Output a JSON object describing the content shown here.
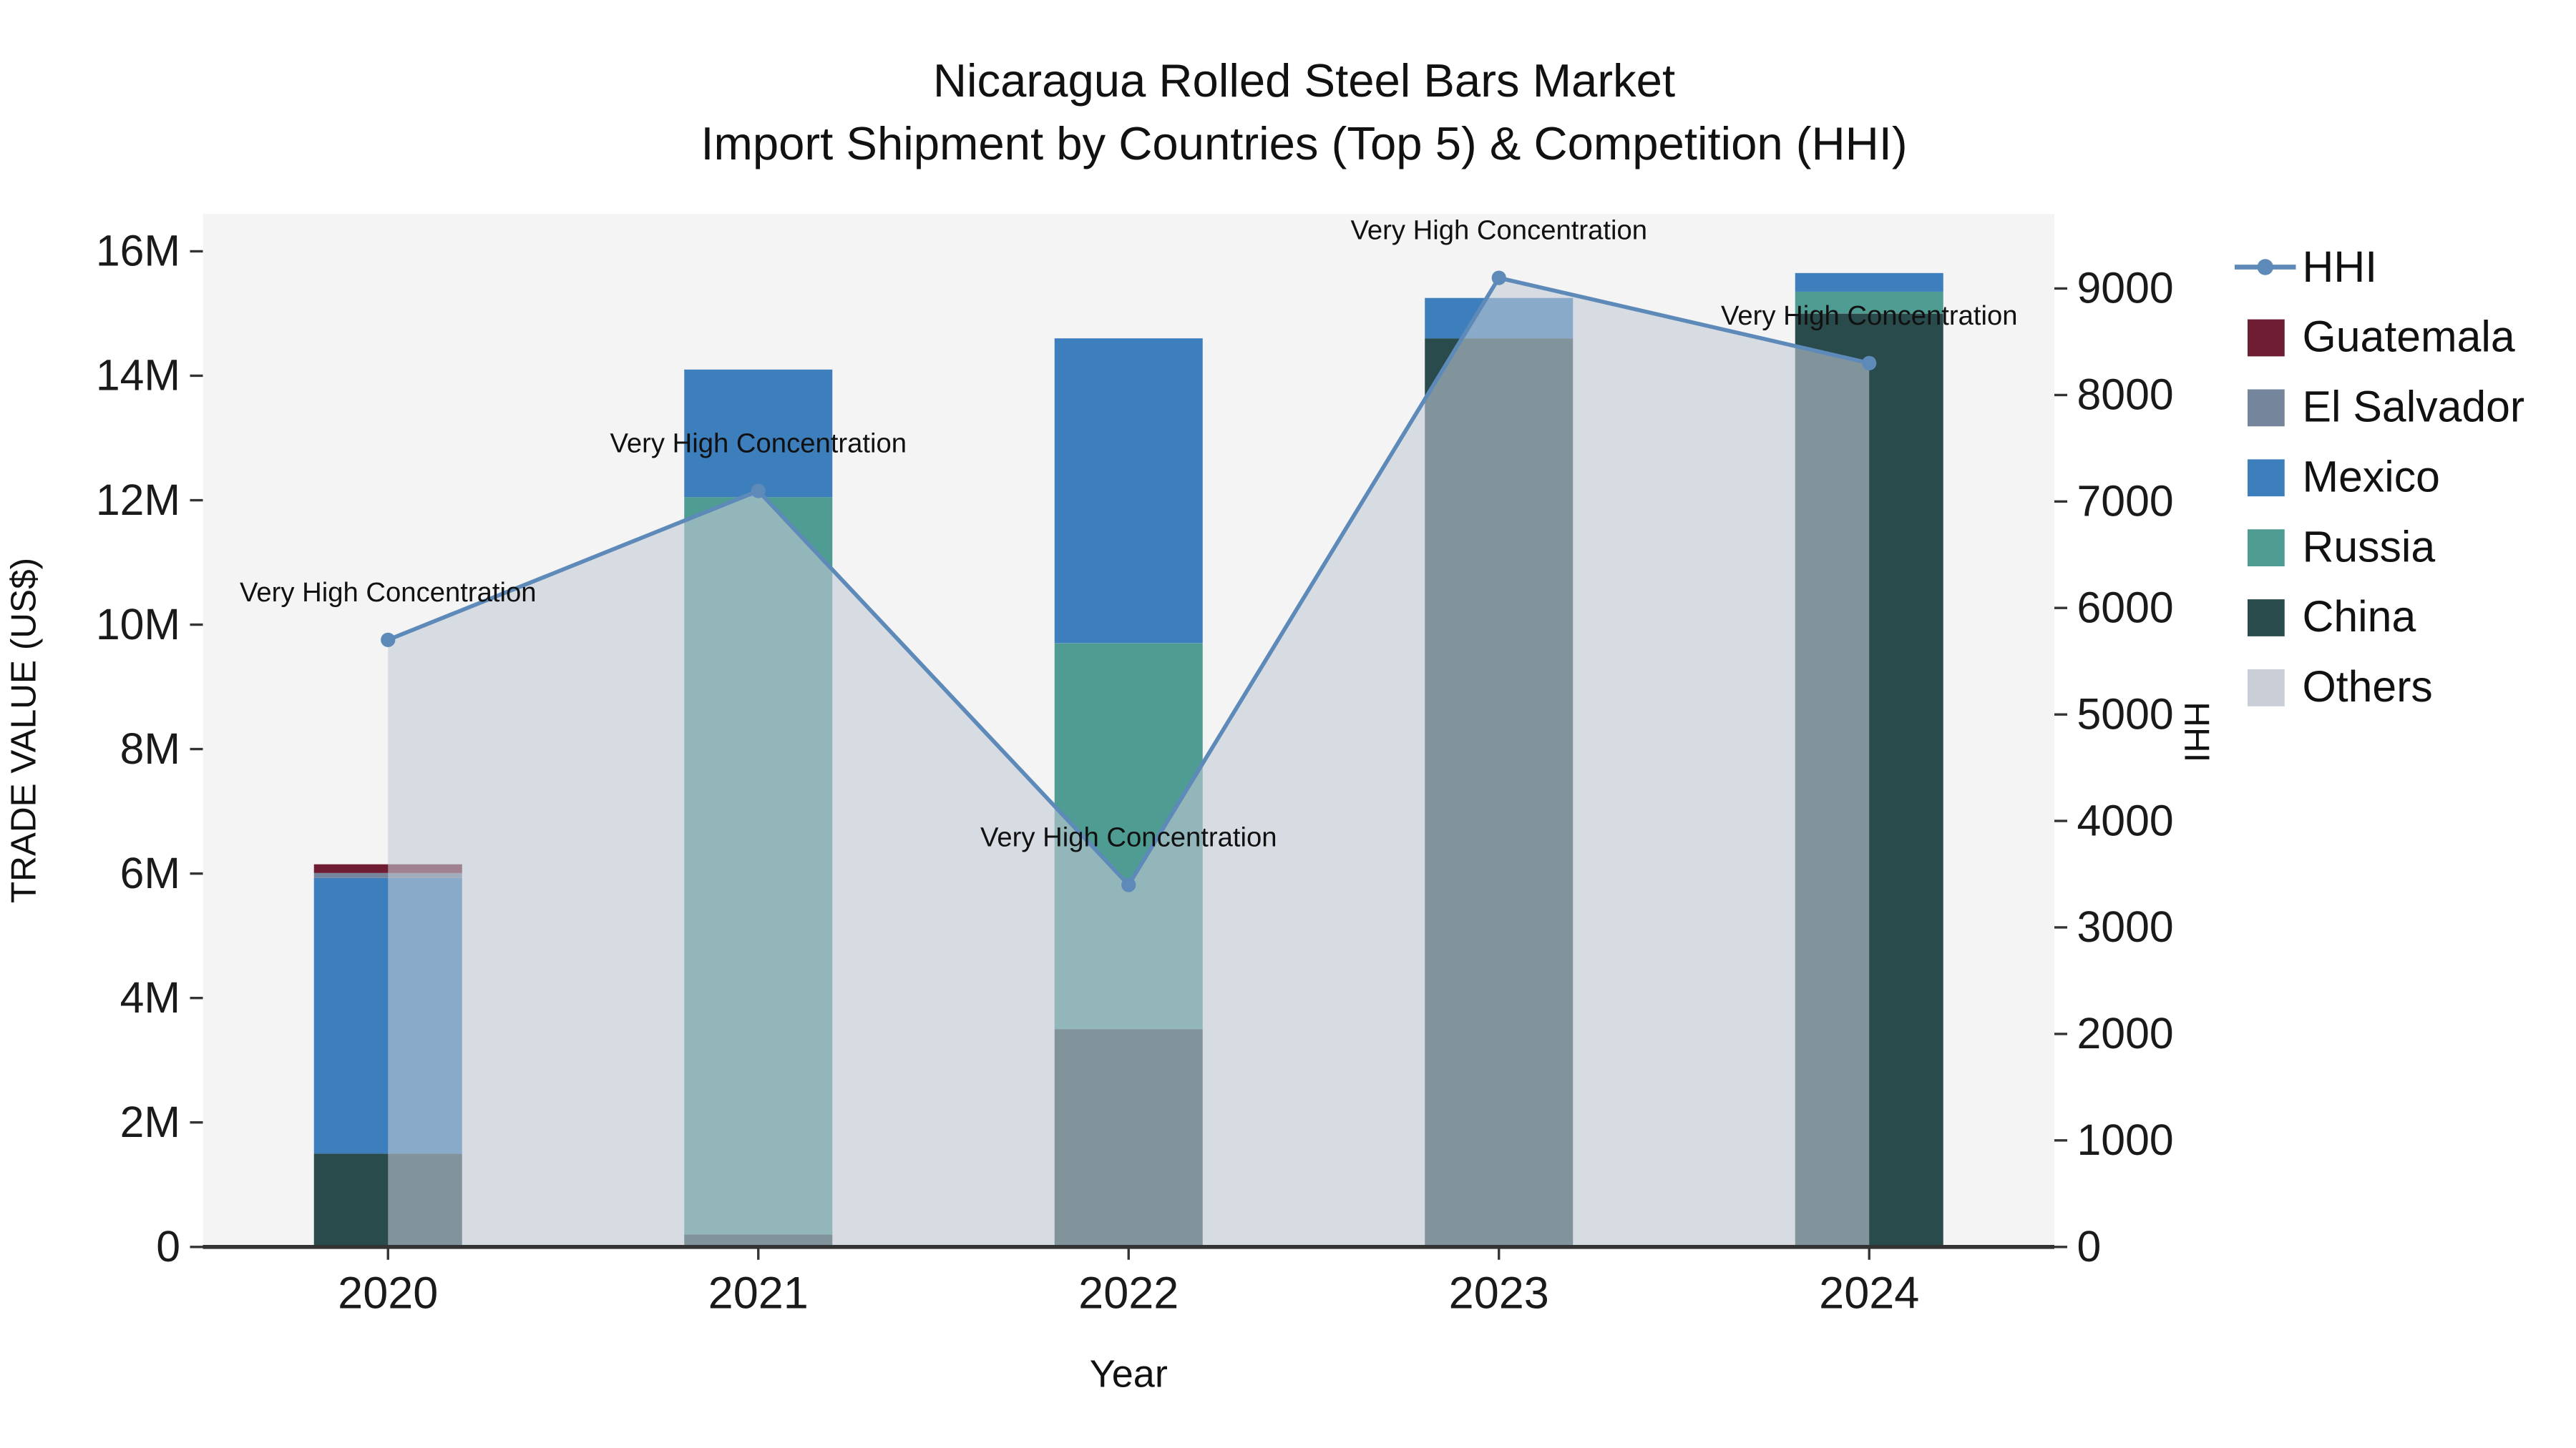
{
  "title": {
    "line1": "Nicaragua Rolled Steel Bars Market",
    "line2": "Import Shipment by Countries (Top 5) & Competition (HHI)"
  },
  "chart_data": {
    "type": "bar+line",
    "x": [
      "2020",
      "2021",
      "2022",
      "2023",
      "2024"
    ],
    "xlabel": "Year",
    "ylabel_left": "TRADE VALUE (US$)",
    "ylabel_right": "HHI",
    "ylim_left": [
      0,
      16600000
    ],
    "ylim_right": [
      0,
      9700
    ],
    "yticks_left": {
      "values": [
        0,
        2000000,
        4000000,
        6000000,
        8000000,
        10000000,
        12000000,
        14000000,
        16000000
      ],
      "labels": [
        "0",
        "2M",
        "4M",
        "6M",
        "8M",
        "10M",
        "12M",
        "14M",
        "16M"
      ]
    },
    "yticks_right": {
      "values": [
        0,
        1000,
        2000,
        3000,
        4000,
        5000,
        6000,
        7000,
        8000,
        9000
      ],
      "labels": [
        "0",
        "1000",
        "2000",
        "3000",
        "4000",
        "5000",
        "6000",
        "7000",
        "8000",
        "9000"
      ]
    },
    "bar_series_bottom_to_top": [
      {
        "name": "China",
        "color": "#2a4b4c",
        "values": [
          1500000,
          200000,
          3500000,
          14600000,
          15000000
        ]
      },
      {
        "name": "Russia",
        "color": "#4f9c93",
        "values": [
          0,
          11850000,
          6200000,
          0,
          350000
        ]
      },
      {
        "name": "Mexico",
        "color": "#3d7ebd",
        "values": [
          4430000,
          2050000,
          4900000,
          650000,
          300000
        ]
      },
      {
        "name": "El Salvador",
        "color": "#74859c",
        "values": [
          80000,
          0,
          0,
          0,
          0
        ]
      },
      {
        "name": "Guatemala",
        "color": "#6f1d33",
        "values": [
          140000,
          0,
          0,
          0,
          0
        ]
      }
    ],
    "line_series": {
      "name": "HHI",
      "color": "#5d8ab8",
      "area_fill": "rgba(194,201,212,0.58)",
      "values": [
        5700,
        7100,
        3400,
        9100,
        8300
      ]
    },
    "annotations": [
      {
        "x": "2020",
        "text": "Very High Concentration"
      },
      {
        "x": "2021",
        "text": "Very High Concentration"
      },
      {
        "x": "2022",
        "text": "Very High Concentration"
      },
      {
        "x": "2023",
        "text": "Very High Concentration"
      },
      {
        "x": "2024",
        "text": "Very High Concentration"
      }
    ],
    "legend": [
      {
        "label": "HHI",
        "color": "#5d8ab8",
        "type": "line"
      },
      {
        "label": "Guatemala",
        "color": "#6f1d33",
        "type": "square"
      },
      {
        "label": "El Salvador",
        "color": "#74859c",
        "type": "square"
      },
      {
        "label": "Mexico",
        "color": "#3d7ebd",
        "type": "square"
      },
      {
        "label": "Russia",
        "color": "#4f9c93",
        "type": "square"
      },
      {
        "label": "China",
        "color": "#2a4b4c",
        "type": "square"
      },
      {
        "label": "Others",
        "color": "#c9cdd5",
        "type": "square"
      }
    ],
    "layout": {
      "plot_background": "#f4f4f5",
      "grid": false,
      "legend_position": "right"
    }
  }
}
